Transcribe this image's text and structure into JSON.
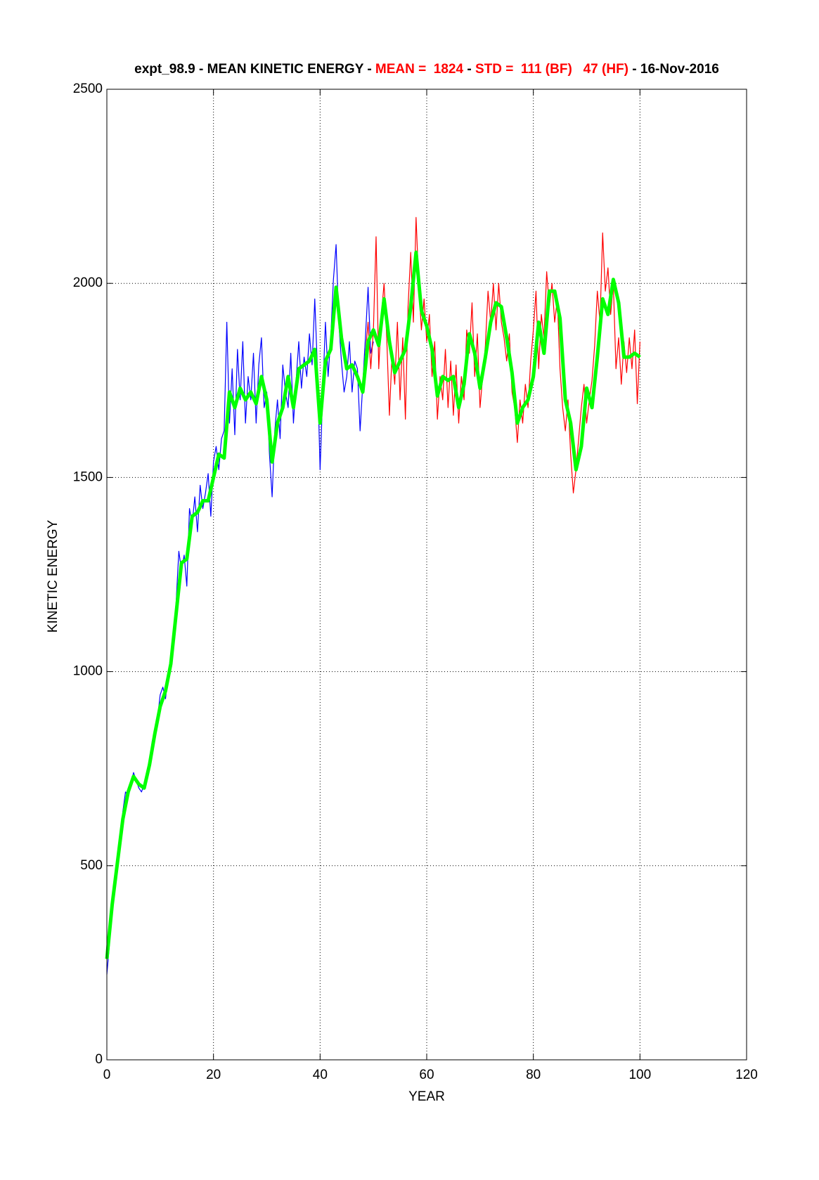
{
  "chart_data": {
    "type": "line",
    "title_parts": [
      {
        "text": "expt_98.9 - MEAN KINETIC ENERGY - ",
        "color": "#000000"
      },
      {
        "text": "MEAN =  1824",
        "color": "#ff0000"
      },
      {
        "text": " - ",
        "color": "#000000"
      },
      {
        "text": "STD =  111 (BF)   47 (HF)",
        "color": "#ff0000"
      },
      {
        "text": " - 16-Nov-2016",
        "color": "#000000"
      }
    ],
    "xlabel": "YEAR",
    "ylabel": "KINETIC ENERGY",
    "xlim": [
      0,
      120
    ],
    "xticks": [
      0,
      20,
      40,
      60,
      80,
      100,
      120
    ],
    "ylim": [
      0,
      2500
    ],
    "yticks": [
      0,
      500,
      1000,
      1500,
      2000,
      2500
    ],
    "grid": true,
    "series": [
      {
        "color": "#0000ff",
        "width": 1.2,
        "x": [
          0,
          0.5,
          1,
          1.5,
          2,
          2.5,
          3,
          3.5,
          4,
          4.5,
          5,
          5.5,
          6,
          6.5,
          7,
          7.5,
          8,
          8.5,
          9,
          9.5,
          10,
          10.5,
          11,
          11.5,
          12,
          12.5,
          13,
          13.5,
          14,
          14.5,
          15,
          15.5,
          16,
          16.5,
          17,
          17.5,
          18,
          18.5,
          19,
          19.5,
          20,
          20.5,
          21,
          21.5,
          22,
          22.5,
          23,
          23.5,
          24,
          24.5,
          25,
          25.5,
          26,
          26.5,
          27,
          27.5,
          28,
          28.5,
          29,
          29.5,
          30,
          30.5,
          31,
          31.5,
          32,
          32.5,
          33,
          33.5,
          34,
          34.5,
          35,
          35.5,
          36,
          36.5,
          37,
          37.5,
          38,
          38.5,
          39,
          39.5,
          40,
          40.5,
          41,
          41.5,
          42,
          42.5,
          43,
          43.5,
          44,
          44.5,
          45,
          45.5,
          46,
          46.5,
          47,
          47.5,
          48,
          48.5,
          49,
          49.5,
          50
        ],
        "values": [
          220,
          300,
          390,
          460,
          510,
          570,
          640,
          690,
          680,
          710,
          740,
          720,
          700,
          690,
          710,
          740,
          770,
          820,
          850,
          880,
          940,
          960,
          930,
          990,
          1030,
          1100,
          1180,
          1310,
          1260,
          1300,
          1220,
          1420,
          1380,
          1450,
          1360,
          1480,
          1420,
          1460,
          1510,
          1400,
          1540,
          1580,
          1520,
          1600,
          1620,
          1900,
          1640,
          1780,
          1610,
          1830,
          1700,
          1850,
          1640,
          1760,
          1700,
          1820,
          1640,
          1790,
          1860,
          1680,
          1720,
          1560,
          1450,
          1620,
          1700,
          1600,
          1790,
          1720,
          1680,
          1820,
          1640,
          1750,
          1850,
          1730,
          1810,
          1760,
          1870,
          1790,
          1960,
          1780,
          1520,
          1720,
          1900,
          1760,
          1860,
          2010,
          2100,
          1900,
          1800,
          1720,
          1760,
          1850,
          1720,
          1800,
          1780,
          1620,
          1740,
          1860,
          1990,
          1820,
          1850
        ]
      },
      {
        "color": "#ff0000",
        "width": 1.2,
        "x": [
          48,
          48.5,
          49,
          49.5,
          50,
          50.5,
          51,
          51.5,
          52,
          52.5,
          53,
          53.5,
          54,
          54.5,
          55,
          55.5,
          56,
          56.5,
          57,
          57.5,
          58,
          58.5,
          59,
          59.5,
          60,
          60.5,
          61,
          61.5,
          62,
          62.5,
          63,
          63.5,
          64,
          64.5,
          65,
          65.5,
          66,
          66.5,
          67,
          67.5,
          68,
          68.5,
          69,
          69.5,
          70,
          70.5,
          71,
          71.5,
          72,
          72.5,
          73,
          73.5,
          74,
          74.5,
          75,
          75.5,
          76,
          76.5,
          77,
          77.5,
          78,
          78.5,
          79,
          79.5,
          80,
          80.5,
          81,
          81.5,
          82,
          82.5,
          83,
          83.5,
          84,
          84.5,
          85,
          85.5,
          86,
          86.5,
          87,
          87.5,
          88,
          88.5,
          89,
          89.5,
          90,
          90.5,
          91,
          91.5,
          92,
          92.5,
          93,
          93.5,
          94,
          94.5,
          95,
          95.5,
          96,
          96.5,
          97,
          97.5,
          98,
          98.5,
          99,
          99.5,
          100
        ],
        "values": [
          1720,
          1820,
          1900,
          1780,
          1880,
          2120,
          1780,
          1920,
          2000,
          1860,
          1660,
          1820,
          1740,
          1900,
          1700,
          1860,
          1650,
          1940,
          2080,
          1900,
          2170,
          2000,
          1880,
          1960,
          1850,
          1920,
          1760,
          1850,
          1650,
          1760,
          1700,
          1830,
          1680,
          1800,
          1660,
          1790,
          1640,
          1760,
          1700,
          1880,
          1820,
          1950,
          1760,
          1870,
          1680,
          1760,
          1840,
          1980,
          1900,
          2000,
          1880,
          2000,
          1900,
          1860,
          1800,
          1870,
          1720,
          1680,
          1590,
          1700,
          1640,
          1740,
          1680,
          1800,
          1880,
          1980,
          1780,
          1920,
          1860,
          2030,
          1940,
          2000,
          1900,
          1960,
          1780,
          1680,
          1620,
          1700,
          1560,
          1460,
          1520,
          1600,
          1680,
          1740,
          1640,
          1700,
          1750,
          1840,
          1980,
          1900,
          2130,
          1980,
          2040,
          1920,
          2000,
          1780,
          1860,
          1740,
          1850,
          1770,
          1860,
          1780,
          1880,
          1690,
          1850
        ]
      },
      {
        "color": "#00ff00",
        "width": 5,
        "x": [
          0,
          1,
          2,
          3,
          4,
          5,
          6,
          7,
          8,
          9,
          10,
          11,
          12,
          13,
          14,
          15,
          16,
          17,
          18,
          19,
          20,
          21,
          22,
          23,
          24,
          25,
          26,
          27,
          28,
          29,
          30,
          31,
          32,
          33,
          34,
          35,
          36,
          37,
          38,
          39,
          40,
          41,
          42,
          43,
          44,
          45,
          46,
          47,
          48,
          49,
          50,
          51,
          52,
          53,
          54,
          55,
          56,
          57,
          58,
          59,
          60,
          61,
          62,
          63,
          64,
          65,
          66,
          67,
          68,
          69,
          70,
          71,
          72,
          73,
          74,
          75,
          76,
          77,
          78,
          79,
          80,
          81,
          82,
          83,
          84,
          85,
          86,
          87,
          88,
          89,
          90,
          91,
          92,
          93,
          94,
          95,
          96,
          97,
          98,
          99,
          100
        ],
        "values": [
          260,
          400,
          510,
          620,
          690,
          730,
          710,
          700,
          760,
          840,
          910,
          950,
          1020,
          1150,
          1280,
          1290,
          1400,
          1410,
          1440,
          1440,
          1500,
          1560,
          1550,
          1720,
          1680,
          1730,
          1700,
          1720,
          1690,
          1760,
          1700,
          1540,
          1640,
          1680,
          1760,
          1680,
          1780,
          1790,
          1800,
          1830,
          1640,
          1800,
          1830,
          1990,
          1860,
          1780,
          1790,
          1760,
          1720,
          1850,
          1880,
          1840,
          1960,
          1850,
          1770,
          1800,
          1830,
          1940,
          2080,
          1930,
          1890,
          1830,
          1710,
          1760,
          1750,
          1760,
          1680,
          1740,
          1870,
          1820,
          1730,
          1810,
          1900,
          1950,
          1940,
          1860,
          1770,
          1640,
          1680,
          1700,
          1760,
          1900,
          1820,
          1980,
          1980,
          1910,
          1700,
          1640,
          1520,
          1580,
          1730,
          1680,
          1810,
          1960,
          1920,
          2010,
          1950,
          1810,
          1810,
          1820,
          1810
        ]
      }
    ]
  }
}
